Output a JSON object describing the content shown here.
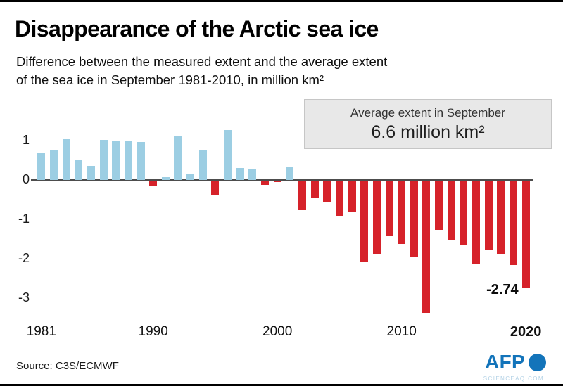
{
  "header": {
    "title": "Disappearance of the Arctic sea ice",
    "subtitle_line1": "Difference between the measured extent and the average extent",
    "subtitle_line2": "of the sea ice in September 1981-2010, in million km²"
  },
  "info_box": {
    "line1": "Average extent in September",
    "line2": "6.6 million km²"
  },
  "chart_data": {
    "type": "bar",
    "title": "Difference between the measured extent and the average extent of the sea ice in September 1981-2010",
    "xlabel": "",
    "ylabel": "million km²",
    "ylim": [
      -3.5,
      1.4
    ],
    "x": [
      1981,
      1982,
      1983,
      1984,
      1985,
      1986,
      1987,
      1988,
      1989,
      1990,
      1991,
      1992,
      1993,
      1994,
      1995,
      1996,
      1997,
      1998,
      1999,
      2000,
      2001,
      2002,
      2003,
      2004,
      2005,
      2006,
      2007,
      2008,
      2009,
      2010,
      2011,
      2012,
      2013,
      2014,
      2015,
      2016,
      2017,
      2018,
      2019,
      2020
    ],
    "values": [
      0.7,
      0.77,
      1.05,
      0.5,
      0.35,
      1.02,
      1.0,
      0.98,
      0.97,
      -0.15,
      0.07,
      1.1,
      0.15,
      0.75,
      -0.35,
      1.27,
      0.3,
      0.28,
      -0.1,
      -0.04,
      0.32,
      -0.75,
      -0.45,
      -0.55,
      -0.9,
      -0.8,
      -2.05,
      -1.85,
      -1.4,
      -1.6,
      -1.95,
      -3.35,
      -1.25,
      -1.5,
      -1.65,
      -2.1,
      -1.75,
      -1.85,
      -2.15,
      -2.74
    ],
    "y_ticks": [
      1,
      0,
      -1,
      -2,
      -3
    ],
    "x_tick_years": [
      1981,
      1990,
      2000,
      2010,
      2020
    ],
    "annotation": {
      "year": 2020,
      "label": "-2.74"
    },
    "colors": {
      "positive": "#9ccee3",
      "negative": "#d6222a"
    },
    "grid": false,
    "legend": "none"
  },
  "footer": {
    "source": "Source: C3S/ECMWF",
    "logo_text": "AFP",
    "watermark": "SCIENCEAQ.COM"
  }
}
